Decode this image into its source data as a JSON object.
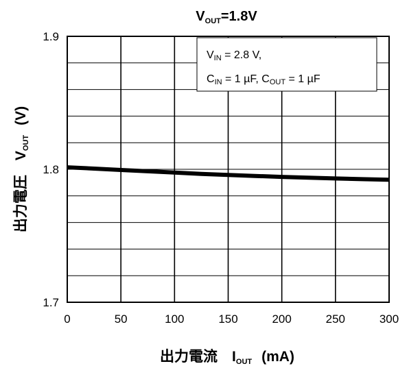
{
  "chart_data": {
    "type": "line",
    "title": {
      "main": "V",
      "sub": "OUT",
      "rest": "=1.8V"
    },
    "xlabel": {
      "prefix": "出力電流　",
      "var": "I",
      "sub": "OUT",
      "unit": "(mA)"
    },
    "ylabel": {
      "prefix": "出力電圧　",
      "var": "V",
      "sub": "OUT",
      "unit": "(V)"
    },
    "xlim": [
      0,
      300
    ],
    "ylim": [
      1.7,
      1.9
    ],
    "x_ticks": [
      "0",
      "50",
      "100",
      "150",
      "200",
      "250",
      "300"
    ],
    "y_ticks": [
      "1.7",
      "1.8",
      "1.9"
    ],
    "grid": {
      "x_step": 50,
      "y_step": 0.02
    },
    "series": [
      {
        "x": [
          0,
          25,
          50,
          75,
          100,
          125,
          150,
          175,
          200,
          225,
          250,
          275,
          300
        ],
        "y": [
          1.8015,
          1.8005,
          1.7995,
          1.7985,
          1.7975,
          1.7965,
          1.7957,
          1.795,
          1.7943,
          1.7937,
          1.7931,
          1.7926,
          1.7921
        ],
        "color": "#000000"
      }
    ],
    "annotation": {
      "line1": {
        "var": "V",
        "sub": "IN",
        "rest": " = 2.8 V,"
      },
      "line2": {
        "var1": "C",
        "sub1": "IN",
        "rest1": " = 1 µF, ",
        "var2": "C",
        "sub2": "OUT",
        "rest2": " = 1 µF"
      },
      "position": "top-right"
    }
  }
}
